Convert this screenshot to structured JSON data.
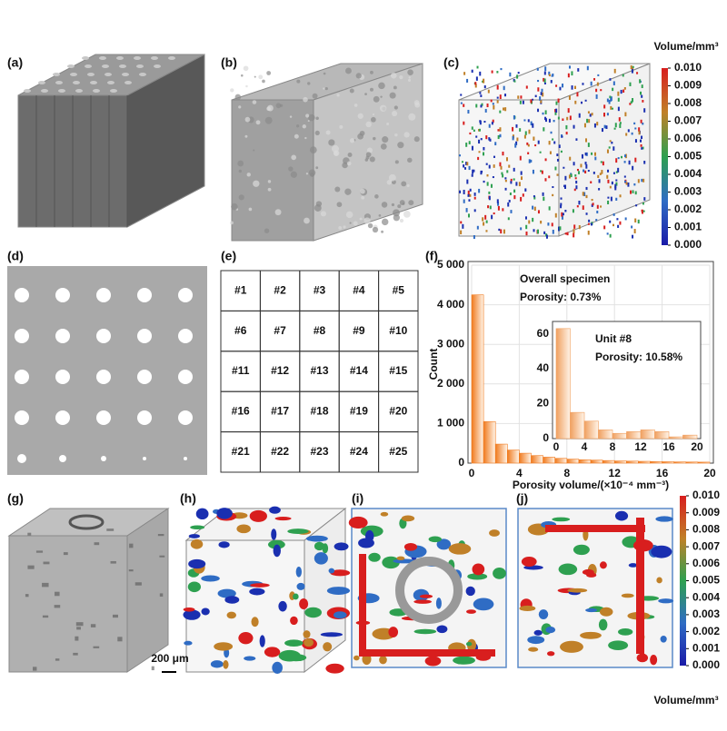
{
  "panels": [
    "(a)",
    "(b)",
    "(c)",
    "(d)",
    "(e)",
    "(f)",
    "(g)",
    "(h)",
    "(i)",
    "(j)"
  ],
  "colorbars": [
    {
      "title": "Volume/mm³",
      "lim": [
        0,
        0.01
      ],
      "ticks": [
        {
          "value": 0.01,
          "label": "0.010"
        },
        {
          "value": 0.009,
          "label": "0.009"
        },
        {
          "value": 0.008,
          "label": "0.008"
        },
        {
          "value": 0.007,
          "label": "0.007"
        },
        {
          "value": 0.006,
          "label": "0.006"
        },
        {
          "value": 0.005,
          "label": "0.005"
        },
        {
          "value": 0.004,
          "label": "0.004"
        },
        {
          "value": 0.003,
          "label": "0.003"
        },
        {
          "value": 0.002,
          "label": "0.002"
        },
        {
          "value": 0.001,
          "label": "0.001"
        },
        {
          "value": 0,
          "label": "0.000"
        }
      ]
    },
    {
      "title": "Volume/mm³",
      "lim": [
        0,
        0.01
      ],
      "ticks": [
        {
          "value": 0.01,
          "label": "0.010"
        },
        {
          "value": 0.009,
          "label": "0.009"
        },
        {
          "value": 0.008,
          "label": "0.008"
        },
        {
          "value": 0.007,
          "label": "0.007"
        },
        {
          "value": 0.006,
          "label": "0.006"
        },
        {
          "value": 0.005,
          "label": "0.005"
        },
        {
          "value": 0.004,
          "label": "0.004"
        },
        {
          "value": 0.003,
          "label": "0.003"
        },
        {
          "value": 0.002,
          "label": "0.002"
        },
        {
          "value": 0.001,
          "label": "0.001"
        },
        {
          "value": 0,
          "label": "0.000"
        }
      ]
    }
  ],
  "table": {
    "cells": [
      [
        "#1",
        "#2",
        "#3",
        "#4",
        "#5"
      ],
      [
        "#6",
        "#7",
        "#8",
        "#9",
        "#10"
      ],
      [
        "#11",
        "#12",
        "#13",
        "#14",
        "#15"
      ],
      [
        "#16",
        "#17",
        "#18",
        "#19",
        "#20"
      ],
      [
        "#21",
        "#22",
        "#23",
        "#24",
        "#25"
      ]
    ]
  },
  "scale_bar": "200 μm",
  "chart_data": [
    {
      "type": "histogram",
      "x_label": "Porosity volume/(×10⁻⁴ mm⁻³)",
      "y_label": "Count",
      "annotations": [
        "Overall specimen",
        "Porosity: 0.73%"
      ],
      "bins": [
        0,
        1,
        2,
        3,
        4,
        5,
        6,
        7,
        8,
        9,
        10,
        11,
        12,
        13,
        14,
        15,
        16,
        17,
        18,
        19,
        20
      ],
      "values": [
        4250,
        1050,
        480,
        330,
        250,
        190,
        150,
        120,
        100,
        85,
        75,
        65,
        55,
        50,
        45,
        40,
        35,
        30,
        28,
        25
      ],
      "color": "#f07a1e",
      "xlim": [
        0,
        20
      ],
      "xticks": [
        0,
        4,
        8,
        12,
        16,
        20
      ],
      "ylim": [
        0,
        5000
      ],
      "yticks": [
        0,
        {
          "value": 1000,
          "label": "1 000"
        },
        {
          "value": 2000,
          "label": "2 000"
        },
        {
          "value": 3000,
          "label": "3 000"
        },
        {
          "value": 4000,
          "label": "4 000"
        },
        {
          "value": 5000,
          "label": "5 000"
        }
      ],
      "grid": true
    },
    {
      "type": "histogram",
      "annotations": [
        "Unit #8",
        "Porosity: 10.58%"
      ],
      "bins": [
        0,
        2,
        4,
        6,
        8,
        10,
        12,
        14,
        16,
        18,
        20
      ],
      "values": [
        63,
        15,
        10,
        5,
        3,
        4,
        5,
        4,
        1,
        2
      ],
      "color": "#f0a060",
      "xlim": [
        0,
        20
      ],
      "xticks": [
        0,
        4,
        8,
        12,
        16,
        20
      ],
      "ylim": [
        0,
        65
      ],
      "yticks": [
        0,
        20,
        40,
        60
      ],
      "grid": false
    }
  ]
}
